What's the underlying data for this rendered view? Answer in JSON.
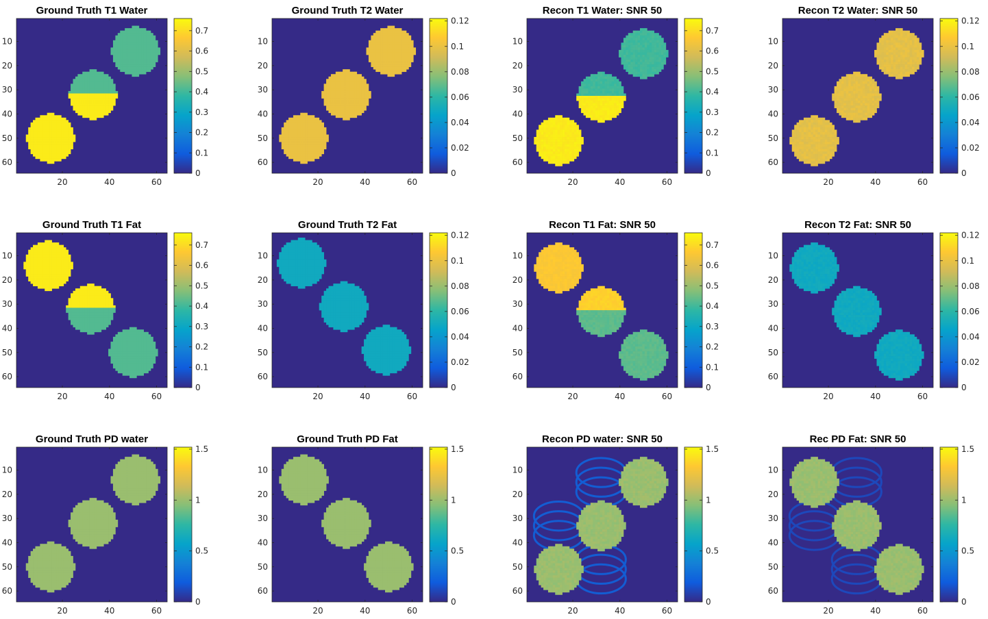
{
  "figure": {
    "background": "#ffffff",
    "image_background_color": "#352a87",
    "colormap": "parula",
    "colormap_stops": [
      "#352a87",
      "#0f5cdd",
      "#1481d6",
      "#06a4ca",
      "#2eb7a4",
      "#87bf77",
      "#d1bb59",
      "#fec832",
      "#f9fb0e"
    ]
  },
  "chart_data": [
    {
      "type": "heatmap",
      "title": "Ground Truth T1 Water",
      "xlim": [
        0.5,
        64.5
      ],
      "ylim": [
        0.5,
        64.5
      ],
      "xticks": [
        20,
        40,
        60
      ],
      "yticks": [
        10,
        20,
        30,
        40,
        50,
        60
      ],
      "clim": [
        0,
        0.76
      ],
      "cbar_ticks": [
        "0",
        "0.1",
        "0.2",
        "0.3",
        "0.4",
        "0.5",
        "0.6",
        "0.7"
      ],
      "noise": 0,
      "ghost": 0,
      "disks": [
        {
          "cx": 51,
          "cy": 14,
          "r": 10,
          "value": 0.42
        },
        {
          "cx": 33,
          "cy": 32,
          "r": 10,
          "value_top": 0.42,
          "value_bottom": 0.73
        },
        {
          "cx": 15,
          "cy": 50,
          "r": 10,
          "value": 0.73
        }
      ]
    },
    {
      "type": "heatmap",
      "title": "Ground Truth T2 Water",
      "xlim": [
        0.5,
        64.5
      ],
      "ylim": [
        0.5,
        64.5
      ],
      "xticks": [
        20,
        40,
        60
      ],
      "yticks": [
        10,
        20,
        30,
        40,
        50,
        60
      ],
      "clim": [
        0,
        0.122
      ],
      "cbar_ticks": [
        "0",
        "0.02",
        "0.04",
        "0.06",
        "0.08",
        "0.1",
        "0.12"
      ],
      "noise": 0,
      "ghost": 0,
      "disks": [
        {
          "cx": 51,
          "cy": 14,
          "r": 10,
          "value": 0.1
        },
        {
          "cx": 32,
          "cy": 32,
          "r": 10,
          "value": 0.1
        },
        {
          "cx": 14,
          "cy": 50,
          "r": 10,
          "value": 0.1
        }
      ]
    },
    {
      "type": "heatmap",
      "title": "Recon T1 Water: SNR 50",
      "xlim": [
        0.5,
        64.5
      ],
      "ylim": [
        0.5,
        64.5
      ],
      "xticks": [
        20,
        40,
        60
      ],
      "yticks": [
        10,
        20,
        30,
        40,
        50,
        60
      ],
      "clim": [
        0,
        0.76
      ],
      "cbar_ticks": [
        "0",
        "0.1",
        "0.2",
        "0.3",
        "0.4",
        "0.5",
        "0.6",
        "0.7"
      ],
      "noise": 0.012,
      "ghost": 0,
      "disks": [
        {
          "cx": 50,
          "cy": 15,
          "r": 10,
          "value": 0.4
        },
        {
          "cx": 32,
          "cy": 33,
          "r": 10,
          "value_top": 0.4,
          "value_bottom": 0.73
        },
        {
          "cx": 14,
          "cy": 51,
          "r": 10,
          "value": 0.73
        }
      ]
    },
    {
      "type": "heatmap",
      "title": "Recon T2 Water: SNR 50",
      "xlim": [
        0.5,
        64.5
      ],
      "ylim": [
        0.5,
        64.5
      ],
      "xticks": [
        20,
        40,
        60
      ],
      "yticks": [
        10,
        20,
        30,
        40,
        50,
        60
      ],
      "clim": [
        0,
        0.122
      ],
      "cbar_ticks": [
        "0",
        "0.02",
        "0.04",
        "0.06",
        "0.08",
        "0.1",
        "0.12"
      ],
      "noise": 0.003,
      "ghost": 0,
      "disks": [
        {
          "cx": 50,
          "cy": 15,
          "r": 10,
          "value": 0.098
        },
        {
          "cx": 32,
          "cy": 33,
          "r": 10,
          "value": 0.098
        },
        {
          "cx": 14,
          "cy": 51,
          "r": 10,
          "value": 0.098
        }
      ]
    },
    {
      "type": "heatmap",
      "title": "Ground Truth T1 Fat",
      "xlim": [
        0.5,
        64.5
      ],
      "ylim": [
        0.5,
        64.5
      ],
      "xticks": [
        20,
        40,
        60
      ],
      "yticks": [
        10,
        20,
        30,
        40,
        50,
        60
      ],
      "clim": [
        0,
        0.76
      ],
      "cbar_ticks": [
        "0",
        "0.1",
        "0.2",
        "0.3",
        "0.4",
        "0.5",
        "0.6",
        "0.7"
      ],
      "noise": 0,
      "ghost": 0,
      "disks": [
        {
          "cx": 14,
          "cy": 14,
          "r": 10,
          "value": 0.73
        },
        {
          "cx": 32,
          "cy": 32,
          "r": 10,
          "value_top": 0.73,
          "value_bottom": 0.42
        },
        {
          "cx": 50,
          "cy": 50,
          "r": 10,
          "value": 0.42
        }
      ]
    },
    {
      "type": "heatmap",
      "title": "Ground Truth T2 Fat",
      "xlim": [
        0.5,
        64.5
      ],
      "ylim": [
        0.5,
        64.5
      ],
      "xticks": [
        20,
        40,
        60
      ],
      "yticks": [
        10,
        20,
        30,
        40,
        50,
        60
      ],
      "clim": [
        0,
        0.122
      ],
      "cbar_ticks": [
        "0",
        "0.02",
        "0.04",
        "0.06",
        "0.08",
        "0.1",
        "0.12"
      ],
      "noise": 0,
      "ghost": 0,
      "disks": [
        {
          "cx": 13,
          "cy": 13,
          "r": 10,
          "value": 0.05
        },
        {
          "cx": 31,
          "cy": 31,
          "r": 10,
          "value": 0.05
        },
        {
          "cx": 49,
          "cy": 49,
          "r": 10,
          "value": 0.05
        }
      ]
    },
    {
      "type": "heatmap",
      "title": "Recon T1 Fat: SNR 50",
      "xlim": [
        0.5,
        64.5
      ],
      "ylim": [
        0.5,
        64.5
      ],
      "xticks": [
        20,
        40,
        60
      ],
      "yticks": [
        10,
        20,
        30,
        40,
        50,
        60
      ],
      "clim": [
        0,
        0.76
      ],
      "cbar_ticks": [
        "0",
        "0.1",
        "0.2",
        "0.3",
        "0.4",
        "0.5",
        "0.6",
        "0.7"
      ],
      "noise": 0.012,
      "ghost": 0,
      "disks": [
        {
          "cx": 14,
          "cy": 15,
          "r": 10,
          "value": 0.66
        },
        {
          "cx": 32,
          "cy": 33,
          "r": 10,
          "value_top": 0.68,
          "value_bottom": 0.43
        },
        {
          "cx": 50,
          "cy": 51,
          "r": 10,
          "value": 0.43
        }
      ]
    },
    {
      "type": "heatmap",
      "title": "Recon T2 Fat: SNR 50",
      "xlim": [
        0.5,
        64.5
      ],
      "ylim": [
        0.5,
        64.5
      ],
      "xticks": [
        20,
        40,
        60
      ],
      "yticks": [
        10,
        20,
        30,
        40,
        50,
        60
      ],
      "clim": [
        0,
        0.122
      ],
      "cbar_ticks": [
        "0",
        "0.02",
        "0.04",
        "0.06",
        "0.08",
        "0.1",
        "0.12"
      ],
      "noise": 0.002,
      "ghost": 0,
      "disks": [
        {
          "cx": 14,
          "cy": 15,
          "r": 10,
          "value": 0.05
        },
        {
          "cx": 32,
          "cy": 33,
          "r": 10,
          "value": 0.05
        },
        {
          "cx": 50,
          "cy": 51,
          "r": 10,
          "value": 0.05
        }
      ]
    },
    {
      "type": "heatmap",
      "title": "Ground Truth PD water",
      "xlim": [
        0.5,
        64.5
      ],
      "ylim": [
        0.5,
        64.5
      ],
      "xticks": [
        20,
        40,
        60
      ],
      "yticks": [
        10,
        20,
        30,
        40,
        50,
        60
      ],
      "clim": [
        0,
        1.52
      ],
      "cbar_ticks": [
        "0",
        "0.5",
        "1",
        "1.5"
      ],
      "noise": 0,
      "ghost": 0,
      "disks": [
        {
          "cx": 51,
          "cy": 14,
          "r": 10,
          "value": 1.0
        },
        {
          "cx": 33,
          "cy": 32,
          "r": 10,
          "value": 1.0
        },
        {
          "cx": 15,
          "cy": 50,
          "r": 10,
          "value": 1.0
        }
      ]
    },
    {
      "type": "heatmap",
      "title": "Ground Truth PD Fat",
      "xlim": [
        0.5,
        64.5
      ],
      "ylim": [
        0.5,
        64.5
      ],
      "xticks": [
        20,
        40,
        60
      ],
      "yticks": [
        10,
        20,
        30,
        40,
        50,
        60
      ],
      "clim": [
        0,
        1.52
      ],
      "cbar_ticks": [
        "0",
        "0.5",
        "1",
        "1.5"
      ],
      "noise": 0,
      "ghost": 0,
      "disks": [
        {
          "cx": 14,
          "cy": 14,
          "r": 10,
          "value": 1.0
        },
        {
          "cx": 32,
          "cy": 32,
          "r": 10,
          "value": 1.0
        },
        {
          "cx": 50,
          "cy": 50,
          "r": 10,
          "value": 1.0
        }
      ]
    },
    {
      "type": "heatmap",
      "title": "Recon PD water: SNR 50",
      "xlim": [
        0.5,
        64.5
      ],
      "ylim": [
        0.5,
        64.5
      ],
      "xticks": [
        20,
        40,
        60
      ],
      "yticks": [
        10,
        20,
        30,
        40,
        50,
        60
      ],
      "clim": [
        0,
        1.52
      ],
      "cbar_ticks": [
        "0",
        "0.5",
        "1",
        "1.5"
      ],
      "noise": 0.03,
      "ghost": 0.14,
      "disks": [
        {
          "cx": 50,
          "cy": 15,
          "r": 10,
          "value": 1.0
        },
        {
          "cx": 32,
          "cy": 33,
          "r": 10,
          "value": 1.0
        },
        {
          "cx": 14,
          "cy": 51,
          "r": 10,
          "value": 1.0
        }
      ]
    },
    {
      "type": "heatmap",
      "title": "Rec PD Fat: SNR 50",
      "xlim": [
        0.5,
        64.5
      ],
      "ylim": [
        0.5,
        64.5
      ],
      "xticks": [
        20,
        40,
        60
      ],
      "yticks": [
        10,
        20,
        30,
        40,
        50,
        60
      ],
      "clim": [
        0,
        1.52
      ],
      "cbar_ticks": [
        "0",
        "0.5",
        "1",
        "1.5"
      ],
      "noise": 0.03,
      "ghost": 0.08,
      "disks": [
        {
          "cx": 14,
          "cy": 15,
          "r": 10,
          "value": 1.0
        },
        {
          "cx": 32,
          "cy": 33,
          "r": 10,
          "value": 1.0
        },
        {
          "cx": 50,
          "cy": 51,
          "r": 10,
          "value": 1.0
        }
      ]
    }
  ]
}
